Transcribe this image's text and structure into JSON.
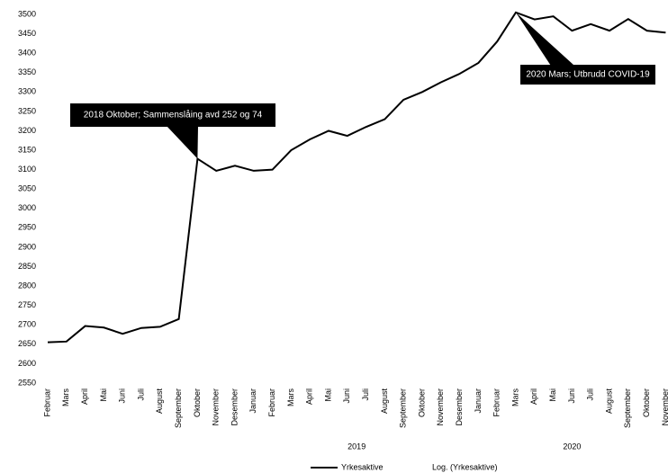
{
  "chart_data": {
    "type": "line",
    "categories": [
      "Februar",
      "Mars",
      "April",
      "Mai",
      "Juni",
      "Juli",
      "August",
      "September",
      "Oktober",
      "November",
      "Desember",
      "Januar",
      "Februar",
      "Mars",
      "April",
      "Mai",
      "Juni",
      "Juli",
      "August",
      "September",
      "Oktober",
      "November",
      "Desember",
      "Januar",
      "Februar",
      "Mars",
      "April",
      "Mai",
      "Juni",
      "Juli",
      "August",
      "September",
      "Oktober",
      "November"
    ],
    "years": [
      null,
      null,
      null,
      null,
      null,
      null,
      null,
      null,
      null,
      null,
      null,
      "2019",
      "2019",
      "2019",
      "2019",
      "2019",
      "2019",
      "2019",
      "2019",
      "2019",
      "2019",
      "2019",
      "2019",
      "2020",
      "2020",
      "2020",
      "2020",
      "2020",
      "2020",
      "2020",
      "2020",
      "2020",
      "2020",
      "2020"
    ],
    "series": [
      {
        "name": "Yrkesaktive",
        "color": "#000000",
        "values": [
          2655,
          2657,
          2697,
          2693,
          2677,
          2692,
          2695,
          2715,
          3128,
          3097,
          3110,
          3097,
          3100,
          3150,
          3178,
          3200,
          3187,
          3210,
          3230,
          3280,
          3300,
          3325,
          3347,
          3375,
          3430,
          3505,
          3487,
          3495,
          3458,
          3475,
          3458,
          3488,
          3458,
          3453
        ]
      }
    ],
    "trendline_label": "Log. (Yrkesaktive)",
    "ylim": [
      2550,
      3500
    ],
    "yticks": [
      2550,
      2600,
      2650,
      2700,
      2750,
      2800,
      2850,
      2900,
      2950,
      3000,
      3050,
      3100,
      3150,
      3200,
      3250,
      3300,
      3350,
      3400,
      3450,
      3500
    ],
    "grid": false,
    "annotations": [
      "2018 Oktober; Sammenslåing avd 252 og 74",
      "2020 Mars; Utbrudd COVID-19"
    ]
  }
}
